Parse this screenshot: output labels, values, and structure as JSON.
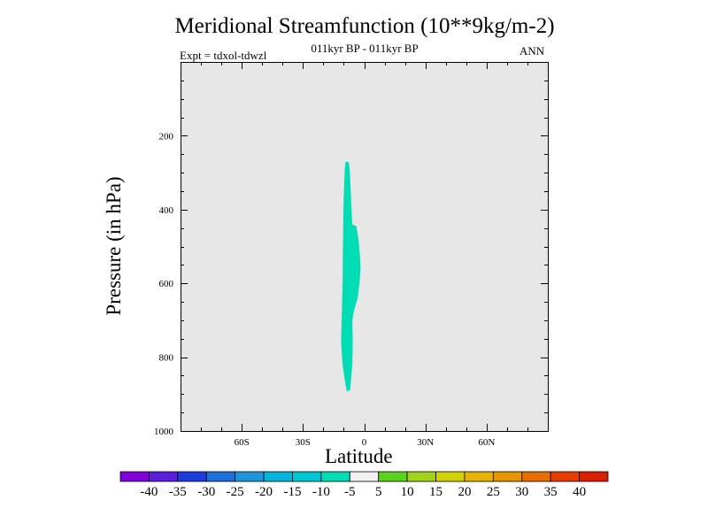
{
  "chart_data": {
    "type": "contour",
    "title": "Meridional Streamfunction (10**9kg/m-2)",
    "subtitle": "011kyr BP - 011kyr BP",
    "left_label": "Expt = tdxol-tdwzl",
    "right_label": "ANN",
    "xlabel": "Latitude",
    "ylabel": "Pressure (in hPa)",
    "xlim": [
      -90,
      90
    ],
    "ylim": [
      1000,
      0
    ],
    "x_ticks": [
      {
        "value": -60,
        "label": "60S"
      },
      {
        "value": -30,
        "label": "30S"
      },
      {
        "value": 0,
        "label": "0"
      },
      {
        "value": 30,
        "label": "30N"
      },
      {
        "value": 60,
        "label": "60N"
      }
    ],
    "y_ticks": [
      {
        "value": 200,
        "label": "200"
      },
      {
        "value": 400,
        "label": "400"
      },
      {
        "value": 600,
        "label": "600"
      },
      {
        "value": 800,
        "label": "800"
      },
      {
        "value": 1000,
        "label": "1000"
      }
    ],
    "background_color": "#e6e6e6",
    "shaded_regions": [
      {
        "interval": "-10 to -5",
        "color": "#00dcb4",
        "outline": [
          [
            -9.1,
            270
          ],
          [
            -7.5,
            272
          ],
          [
            -7.0,
            300
          ],
          [
            -6.6,
            350
          ],
          [
            -6.2,
            400
          ],
          [
            -5.8,
            440
          ],
          [
            -3.8,
            445
          ],
          [
            -2.8,
            480
          ],
          [
            -2.0,
            530
          ],
          [
            -1.8,
            560
          ],
          [
            -2.3,
            600
          ],
          [
            -3.2,
            640
          ],
          [
            -4.8,
            670
          ],
          [
            -5.8,
            700
          ],
          [
            -5.6,
            760
          ],
          [
            -5.8,
            820
          ],
          [
            -6.6,
            870
          ],
          [
            -7.0,
            890
          ],
          [
            -8.5,
            892
          ],
          [
            -9.3,
            870
          ],
          [
            -10.6,
            820
          ],
          [
            -11.3,
            760
          ],
          [
            -11.0,
            690
          ],
          [
            -10.6,
            600
          ],
          [
            -10.4,
            500
          ],
          [
            -10.2,
            400
          ],
          [
            -9.8,
            330
          ],
          [
            -9.5,
            290
          ]
        ]
      }
    ],
    "colorbar": {
      "labels": [
        "-40",
        "-35",
        "-30",
        "-25",
        "-20",
        "-15",
        "-10",
        "-5",
        "5",
        "10",
        "15",
        "20",
        "25",
        "30",
        "35",
        "40"
      ],
      "colors": [
        "#8200dc",
        "#5a1edc",
        "#1e3cdc",
        "#1e6edc",
        "#1e96dc",
        "#00b4dc",
        "#00c8d2",
        "#00dcb4",
        "#f0f0f0",
        "#5ad21e",
        "#a0d21e",
        "#d2d200",
        "#e6b400",
        "#e69600",
        "#e66e00",
        "#e63c00",
        "#dc1e00"
      ]
    }
  }
}
